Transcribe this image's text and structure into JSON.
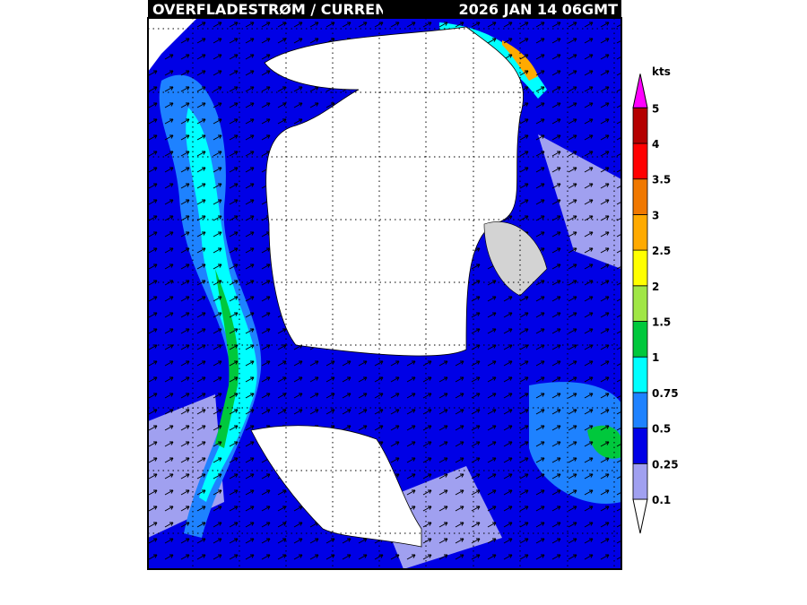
{
  "header": {
    "title": "OVERFLADESTRØM / CURREN",
    "time": "2026 JAN 14 06GMT"
  },
  "legend": {
    "unit": "kts",
    "levels": [
      0.1,
      0.25,
      0.5,
      0.75,
      1,
      1.5,
      2,
      2.5,
      3,
      3.5,
      4,
      5
    ],
    "colors": [
      "#ffffff",
      "#a0a0f0",
      "#0000e6",
      "#1e82ff",
      "#00ffff",
      "#00c83c",
      "#a0e646",
      "#ffff00",
      "#ffaa00",
      "#f07800",
      "#ff0000",
      "#b40000",
      "#ff00ff"
    ]
  }
}
